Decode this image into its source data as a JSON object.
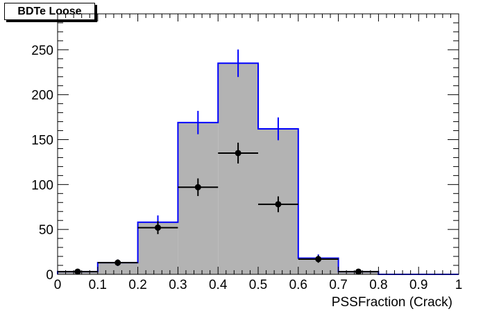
{
  "chart_data": {
    "type": "histogram",
    "title": "BDTe Loose",
    "xlabel": "PSSFraction (Crack)",
    "ylabel": "",
    "xlim": [
      0,
      1
    ],
    "ylim": [
      0,
      290
    ],
    "grid": false,
    "x_ticks": [
      "0",
      "0.1",
      "0.2",
      "0.3",
      "0.4",
      "0.5",
      "0.6",
      "0.7",
      "0.8",
      "0.9",
      "1"
    ],
    "y_ticks": [
      "0",
      "50",
      "100",
      "150",
      "200",
      "250"
    ],
    "bin_edges": [
      0,
      0.1,
      0.2,
      0.3,
      0.4,
      0.5,
      0.6,
      0.7,
      0.8,
      0.9,
      1.0
    ],
    "series": [
      {
        "style": "filled-histogram",
        "fill_color": "#b3b3b3",
        "line_color": "#0000ff",
        "values": [
          3,
          13,
          58,
          169,
          235,
          162,
          18,
          3,
          0,
          0
        ],
        "errors": [
          1.7,
          3.6,
          7.6,
          13,
          15.3,
          12.7,
          4.2,
          1.7,
          0,
          0
        ]
      },
      {
        "style": "points",
        "color": "#000000",
        "values": [
          3,
          13,
          52,
          97,
          135,
          78,
          17,
          3,
          0,
          0
        ],
        "errors": [
          1.7,
          3.6,
          7.2,
          9.8,
          11.6,
          8.8,
          4.1,
          1.7,
          0,
          0
        ]
      }
    ]
  }
}
